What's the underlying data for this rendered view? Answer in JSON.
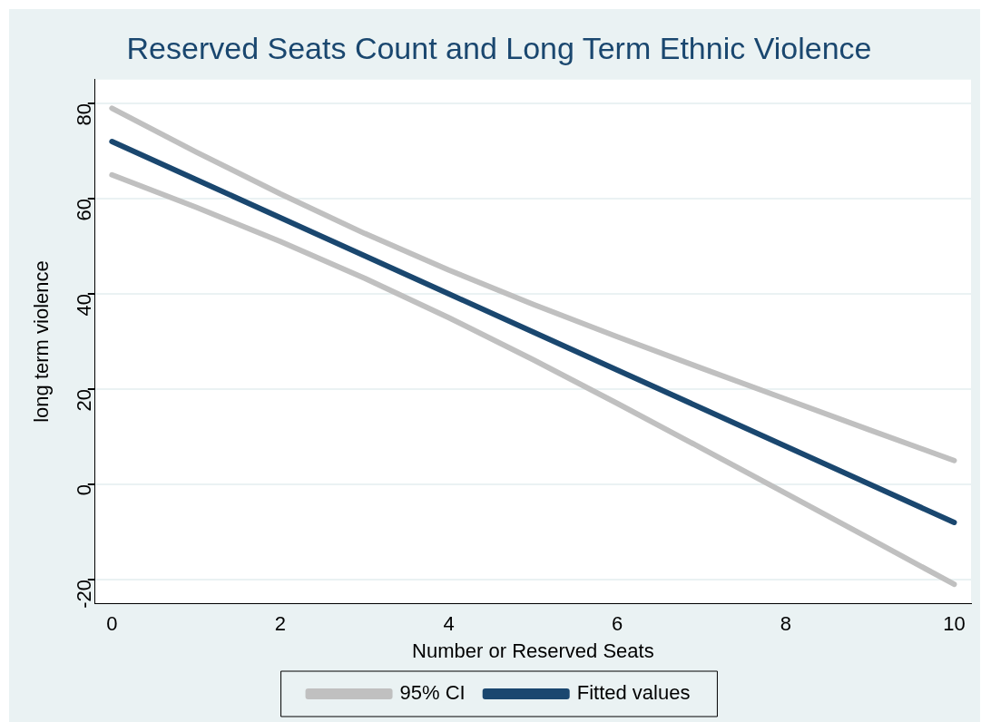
{
  "chart_data": {
    "type": "line",
    "title": "Reserved Seats Count and Long Term Ethnic Violence",
    "xlabel": "Number or Reserved Seats",
    "ylabel": "long term violence",
    "x": [
      0,
      1,
      2,
      3,
      4,
      5,
      6,
      7,
      8,
      9,
      10
    ],
    "series": [
      {
        "name": "95% CI",
        "color": "#c0c0c0",
        "values": [
          79,
          69.8,
          61,
          52.7,
          45,
          37.8,
          31,
          24.4,
          17.9,
          11.4,
          5
        ]
      },
      {
        "color": "#c0c0c0",
        "values": [
          65,
          58.2,
          51,
          43.3,
          35,
          26.2,
          17,
          7.6,
          -1.9,
          -11.4,
          -21
        ]
      },
      {
        "name": "Fitted values",
        "color": "#1a476f",
        "values": [
          72,
          64,
          56,
          48,
          40,
          32,
          24,
          16,
          8,
          0,
          -8
        ]
      }
    ],
    "xlim": [
      -0.2,
      10.2
    ],
    "xticks": [
      0,
      2,
      4,
      6,
      8,
      10
    ],
    "ylim": [
      -25,
      85
    ],
    "yticks": [
      -20,
      0,
      20,
      40,
      60,
      80
    ],
    "grid": "y",
    "legend": "bottom",
    "marker": "none",
    "line_style": "solid"
  }
}
